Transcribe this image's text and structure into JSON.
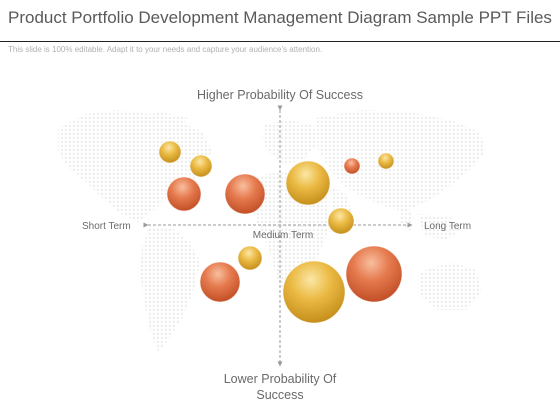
{
  "slide": {
    "title": "Product Portfolio Development Management Diagram Sample PPT Files",
    "subtitle": "This slide is 100% editable. Adapt it to your needs and capture your audience's attention."
  },
  "diagram": {
    "top_label": "Higher Probability Of Success",
    "bottom_label_line1": "Lower Probability Of",
    "bottom_label_line2": "Success",
    "left_label": "Short Term",
    "right_label": "Long Term",
    "center_label": "Medium Term",
    "colors": {
      "orange_bubble": "#e0663a",
      "gold_bubble": "#e8b034",
      "axis": "#9a9a9a",
      "map_dots": "#eeeeee"
    }
  }
}
